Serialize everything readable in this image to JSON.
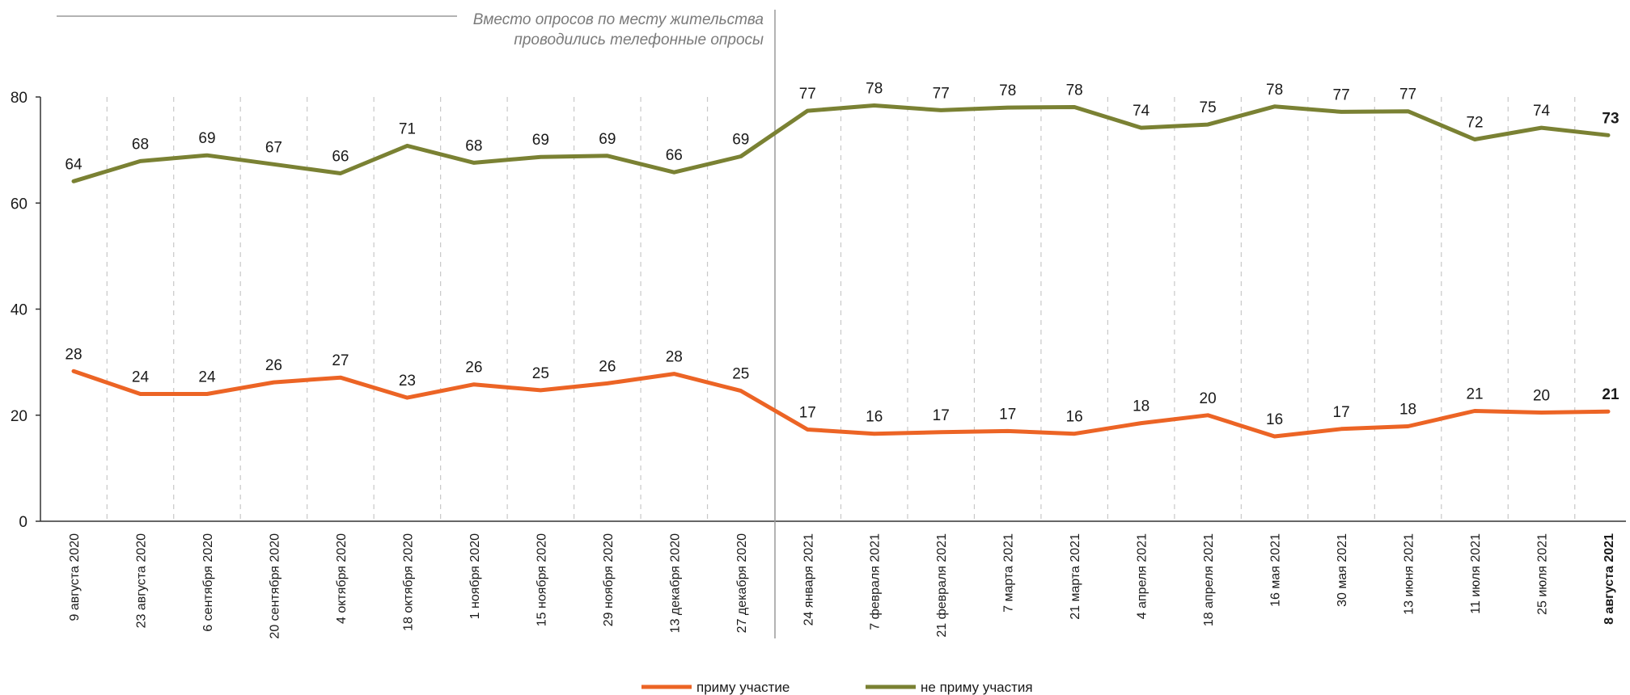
{
  "chart_data": {
    "type": "line",
    "categories": [
      "9 августа 2020",
      "23 августа 2020",
      "6 сентября 2020",
      "20 сентября 2020",
      "4 октября 2020",
      "18 октября 2020",
      "1 ноября 2020",
      "15 ноября 2020",
      "29 ноября 2020",
      "13 декабря 2020",
      "27 декабря 2020",
      "24 января 2021",
      "7 февраля 2021",
      "21 февраля 2021",
      "7 марта 2021",
      "21 марта 2021",
      "4 апреля 2021",
      "18 апреля 2021",
      "16 мая 2021",
      "30 мая 2021",
      "13 июня 2021",
      "11 июля 2021",
      "25 июля 2021",
      "8 августа 2021"
    ],
    "series": [
      {
        "name": "приму участие",
        "color": "#ec6425",
        "values": [
          28,
          24,
          24,
          26,
          27,
          23,
          26,
          25,
          26,
          28,
          25,
          17,
          16,
          17,
          17,
          16,
          18,
          20,
          16,
          17,
          18,
          21,
          20,
          21
        ],
        "plot_values": [
          28.3,
          24,
          24,
          26.2,
          27.1,
          23.3,
          25.8,
          24.7,
          26,
          27.8,
          24.6,
          17.3,
          16.5,
          16.8,
          17,
          16.5,
          18.5,
          20,
          16,
          17.4,
          17.9,
          20.8,
          20.5,
          20.7
        ]
      },
      {
        "name": "не приму участия",
        "color": "#7a8133",
        "values": [
          64,
          68,
          69,
          67,
          66,
          71,
          68,
          69,
          69,
          66,
          69,
          77,
          78,
          77,
          78,
          78,
          74,
          75,
          78,
          77,
          77,
          72,
          74,
          73
        ],
        "plot_values": [
          64.1,
          67.9,
          69,
          67.3,
          65.6,
          70.8,
          67.6,
          68.7,
          68.9,
          65.8,
          68.8,
          77.4,
          78.4,
          77.5,
          78,
          78.1,
          74.2,
          74.8,
          78.2,
          77.2,
          77.3,
          72,
          74.2,
          72.8
        ]
      }
    ],
    "y_ticks": [
      "0",
      "20",
      "40",
      "60",
      "80"
    ],
    "ylim": [
      0,
      80
    ],
    "annotation": {
      "line1": "Вместо опросов по месту жительства",
      "line2": "проводились телефонные опросы"
    },
    "legend": {
      "position": "bottom-center"
    },
    "grid": "vertical dashed"
  }
}
